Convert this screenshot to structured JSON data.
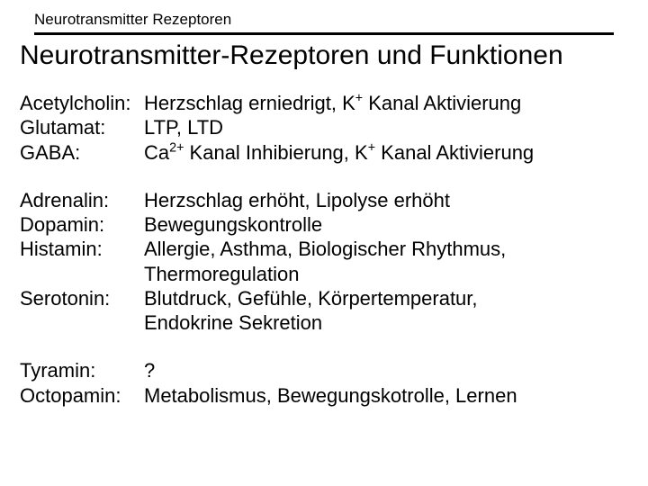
{
  "typography": {
    "smallTitleFontSize": 17,
    "mainTitleFontSize": 30,
    "bodyFontSize": 22,
    "fontFamily": "Arial, Helvetica, sans-serif",
    "textColor": "#000000",
    "backgroundColor": "#ffffff",
    "dividerColor": "#000000",
    "dividerHeight": 3
  },
  "smallTitle": "Neurotransmitter Rezeptoren",
  "mainTitle": "Neurotransmitter-Rezeptoren und Funktionen",
  "groups": [
    {
      "rows": [
        {
          "label": "Acetylcholin:",
          "desc_html": "Herzschlag erniedrigt, K<sup>+</sup> Kanal Aktivierung"
        },
        {
          "label": "Glutamat:",
          "desc": "LTP, LTD"
        },
        {
          "label": "GABA:",
          "desc_html": "Ca<sup>2+</sup> Kanal Inhibierung, K<sup>+</sup> Kanal Aktivierung"
        }
      ]
    },
    {
      "rows": [
        {
          "label": "Adrenalin:",
          "desc": "Herzschlag erhöht, Lipolyse erhöht"
        },
        {
          "label": "Dopamin:",
          "desc": "Bewegungskontrolle"
        },
        {
          "label": "Histamin:",
          "desc_lines": [
            "Allergie, Asthma, Biologischer Rhythmus,",
            "Thermoregulation"
          ]
        },
        {
          "label": "Serotonin:",
          "desc_lines": [
            "Blutdruck, Gefühle, Körpertemperatur,",
            "Endokrine Sekretion"
          ]
        }
      ]
    },
    {
      "rows": [
        {
          "label": "Tyramin:",
          "desc": "?"
        },
        {
          "label": "Octopamin:",
          "desc": "Metabolismus, Bewegungskotrolle, Lernen"
        }
      ]
    }
  ]
}
